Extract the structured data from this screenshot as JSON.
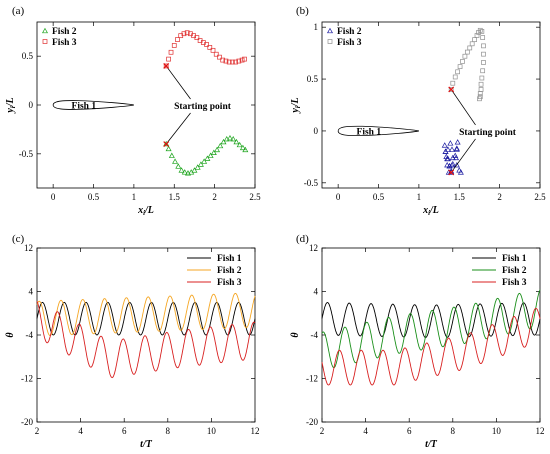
{
  "chart_data": [
    {
      "panel_label": "(a)",
      "type": "scatter",
      "xlabel_main": "x",
      "xlabel_sub": "i",
      "xlabel_rest": "/L",
      "ylabel_main": "y",
      "ylabel_sub": "i",
      "ylabel_rest": "/L",
      "xlim": [
        -0.2,
        2.5
      ],
      "ylim": [
        -0.85,
        0.85
      ],
      "xticks": [
        "0",
        "0.5",
        "1",
        "1.5",
        "2",
        "2.5"
      ],
      "yticks": [
        "-0.5",
        "0",
        "0.5"
      ],
      "body_label": "Fish 1",
      "annotation": "Starting point",
      "legend": "top-left",
      "series": [
        {
          "name": "Fish 2",
          "marker": "triangle",
          "color": "#1aa31a",
          "x": [
            1.4,
            1.43,
            1.47,
            1.51,
            1.55,
            1.59,
            1.63,
            1.67,
            1.71,
            1.75,
            1.79,
            1.83,
            1.87,
            1.91,
            1.95,
            1.99,
            2.03,
            2.07,
            2.11,
            2.15,
            2.19,
            2.23,
            2.27,
            2.31,
            2.35,
            2.38
          ],
          "y": [
            -0.4,
            -0.45,
            -0.52,
            -0.58,
            -0.63,
            -0.67,
            -0.69,
            -0.7,
            -0.69,
            -0.67,
            -0.64,
            -0.61,
            -0.58,
            -0.55,
            -0.52,
            -0.49,
            -0.46,
            -0.42,
            -0.38,
            -0.35,
            -0.34,
            -0.35,
            -0.38,
            -0.41,
            -0.44,
            -0.46
          ]
        },
        {
          "name": "Fish 3",
          "marker": "square",
          "color": "#e03030",
          "x": [
            1.4,
            1.43,
            1.46,
            1.5,
            1.54,
            1.58,
            1.62,
            1.66,
            1.7,
            1.74,
            1.78,
            1.82,
            1.86,
            1.9,
            1.94,
            1.98,
            2.02,
            2.06,
            2.1,
            2.14,
            2.18,
            2.22,
            2.26,
            2.3,
            2.34,
            2.37
          ],
          "y": [
            0.4,
            0.47,
            0.54,
            0.61,
            0.67,
            0.71,
            0.73,
            0.74,
            0.73,
            0.71,
            0.69,
            0.66,
            0.64,
            0.62,
            0.59,
            0.56,
            0.52,
            0.49,
            0.46,
            0.45,
            0.44,
            0.44,
            0.44,
            0.45,
            0.46,
            0.47
          ]
        }
      ],
      "start_points": [
        [
          1.4,
          -0.4
        ],
        [
          1.4,
          0.4
        ]
      ],
      "annot_xy": [
        1.85,
        0
      ]
    },
    {
      "panel_label": "(b)",
      "type": "scatter",
      "xlabel_main": "x",
      "xlabel_sub": "i",
      "xlabel_rest": "/L",
      "ylabel_main": "y",
      "ylabel_sub": "i",
      "ylabel_rest": "/L",
      "xlim": [
        -0.2,
        2.5
      ],
      "ylim": [
        -0.55,
        1.05
      ],
      "xticks": [
        "0",
        "0.5",
        "1",
        "1.5",
        "2",
        "2.5"
      ],
      "yticks": [
        "-0.5",
        "0",
        "0.5",
        "1"
      ],
      "body_label": "Fish 1",
      "annotation": "Starting point",
      "legend": "top-left",
      "series": [
        {
          "name": "Fish 2",
          "marker": "triangle",
          "color": "#1a1aa0",
          "x": [
            1.4,
            1.38,
            1.35,
            1.33,
            1.32,
            1.33,
            1.36,
            1.38,
            1.37,
            1.35,
            1.34,
            1.36,
            1.39,
            1.41,
            1.42,
            1.41,
            1.4,
            1.42,
            1.45,
            1.47,
            1.48,
            1.47,
            1.46,
            1.47,
            1.5,
            1.52
          ],
          "y": [
            -0.4,
            -0.34,
            -0.27,
            -0.2,
            -0.14,
            -0.2,
            -0.27,
            -0.34,
            -0.4,
            -0.33,
            -0.25,
            -0.18,
            -0.12,
            -0.18,
            -0.26,
            -0.33,
            -0.39,
            -0.32,
            -0.24,
            -0.17,
            -0.11,
            -0.18,
            -0.26,
            -0.33,
            -0.38,
            -0.4
          ]
        },
        {
          "name": "Fish 3",
          "marker": "square",
          "color": "#909090",
          "x": [
            1.4,
            1.42,
            1.45,
            1.48,
            1.51,
            1.54,
            1.57,
            1.6,
            1.63,
            1.66,
            1.69,
            1.72,
            1.74,
            1.76,
            1.78,
            1.79,
            1.8,
            1.8,
            1.8,
            1.79,
            1.78,
            1.77,
            1.77,
            1.76,
            1.76,
            1.75
          ],
          "y": [
            0.4,
            0.46,
            0.52,
            0.57,
            0.62,
            0.67,
            0.72,
            0.76,
            0.8,
            0.84,
            0.88,
            0.92,
            0.95,
            0.97,
            0.96,
            0.9,
            0.82,
            0.74,
            0.66,
            0.58,
            0.51,
            0.45,
            0.4,
            0.36,
            0.33,
            0.31
          ]
        }
      ],
      "start_points": [
        [
          1.4,
          -0.4
        ],
        [
          1.4,
          0.4
        ]
      ],
      "annot_xy": [
        1.85,
        0
      ]
    },
    {
      "panel_label": "(c)",
      "type": "line",
      "xlabel_main": "t",
      "xlabel_rest": "/T",
      "ylabel_main": "θ",
      "xlim": [
        2,
        12
      ],
      "ylim": [
        -20,
        12
      ],
      "xticks": [
        "2",
        "4",
        "6",
        "8",
        "10",
        "12"
      ],
      "yticks": [
        "-20",
        "-12",
        "-4",
        "4",
        "12"
      ],
      "legend": "top-right",
      "series": [
        {
          "name": "Fish 1",
          "color": "#000000",
          "mean": [
            -1,
            -1
          ],
          "amp": 3,
          "period": 1,
          "phase": 0
        },
        {
          "name": "Fish 2",
          "color": "#f5a623",
          "mean": [
            -1,
            0.6
          ],
          "amp": 3.2,
          "period": 1,
          "phase": 0.15
        },
        {
          "name": "Fish 3",
          "color": "#d82020",
          "mean": [
            -1,
            -8.5,
            -6.5,
            -5
          ],
          "amp": 3.4,
          "period": 1,
          "phase": 0.3
        }
      ]
    },
    {
      "panel_label": "(d)",
      "type": "line",
      "xlabel_main": "t",
      "xlabel_rest": "/T",
      "ylabel_main": "θ",
      "xlim": [
        2,
        12
      ],
      "ylim": [
        -20,
        12
      ],
      "xticks": [
        "2",
        "4",
        "6",
        "8",
        "10",
        "12"
      ],
      "yticks": [
        "-20",
        "-12",
        "-4",
        "4",
        "12"
      ],
      "legend": "top-right",
      "series": [
        {
          "name": "Fish 1",
          "color": "#000000",
          "mean": [
            -1,
            -1.5,
            -1
          ],
          "amp": 3,
          "period": 1,
          "phase": 0
        },
        {
          "name": "Fish 2",
          "color": "#1a8f1a",
          "mean": [
            -7,
            -4,
            -2,
            1
          ],
          "amp": 3.5,
          "period": 1,
          "phase": 0.2
        },
        {
          "name": "Fish 3",
          "color": "#d82020",
          "mean": [
            -10,
            -10,
            -7,
            -2
          ],
          "amp": 3.2,
          "period": 1,
          "phase": 0.45
        }
      ]
    }
  ]
}
